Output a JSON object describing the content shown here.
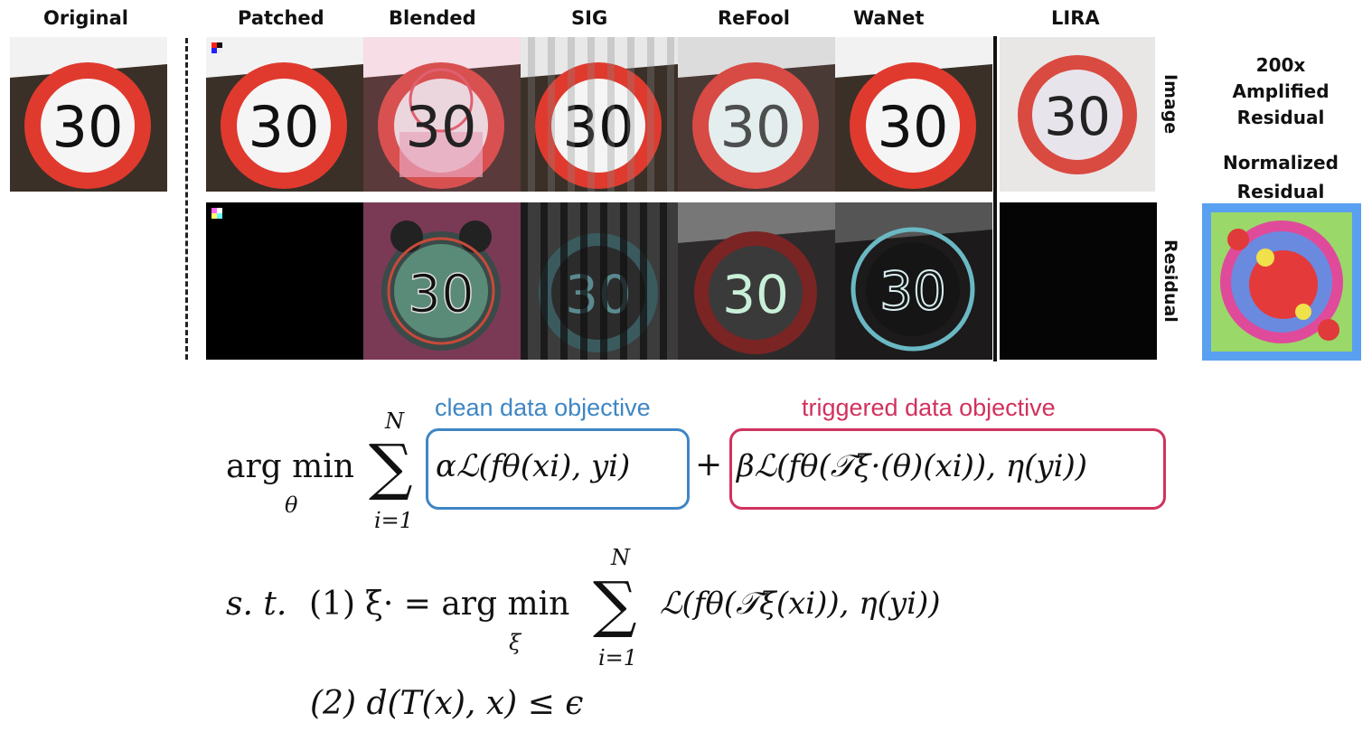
{
  "figure": {
    "headers": {
      "original": "Original",
      "patched": "Patched",
      "blended": "Blended",
      "sig": "SIG",
      "refool": "ReFool",
      "wanet": "WaNet",
      "lira": "LIRA"
    },
    "sign_text": "30",
    "row_labels": {
      "image": "Image",
      "residual": "Residual"
    },
    "side_labels": {
      "amplified": [
        "200x",
        "Amplified",
        "Residual"
      ],
      "normalized": [
        "Normalized",
        "Residual"
      ]
    }
  },
  "equation": {
    "clean_label": "clean data objective",
    "triggered_label": "triggered data objective",
    "clean_color": "#3f86c4",
    "triggered_color": "#d0325e",
    "line1_prefix": "arg min",
    "line1_sub": "θ",
    "sum_top": "N",
    "sum_bottom": "i=1",
    "clean_term": "αℒ(fθ(xi), yi)",
    "plus": "+",
    "triggered_term": "βℒ(fθ(𝒯ξ·(θ)(xi)), η(yi))",
    "st": "s. t.",
    "cond1_num": "(1)",
    "cond1_lhs": "ξ· = arg min",
    "cond1_sub": "ξ",
    "cond1_rhs": "ℒ(fθ(𝒯ξ(xi)), η(yi))",
    "cond2": "(2) d(T(x), x) ≤ ϵ"
  }
}
